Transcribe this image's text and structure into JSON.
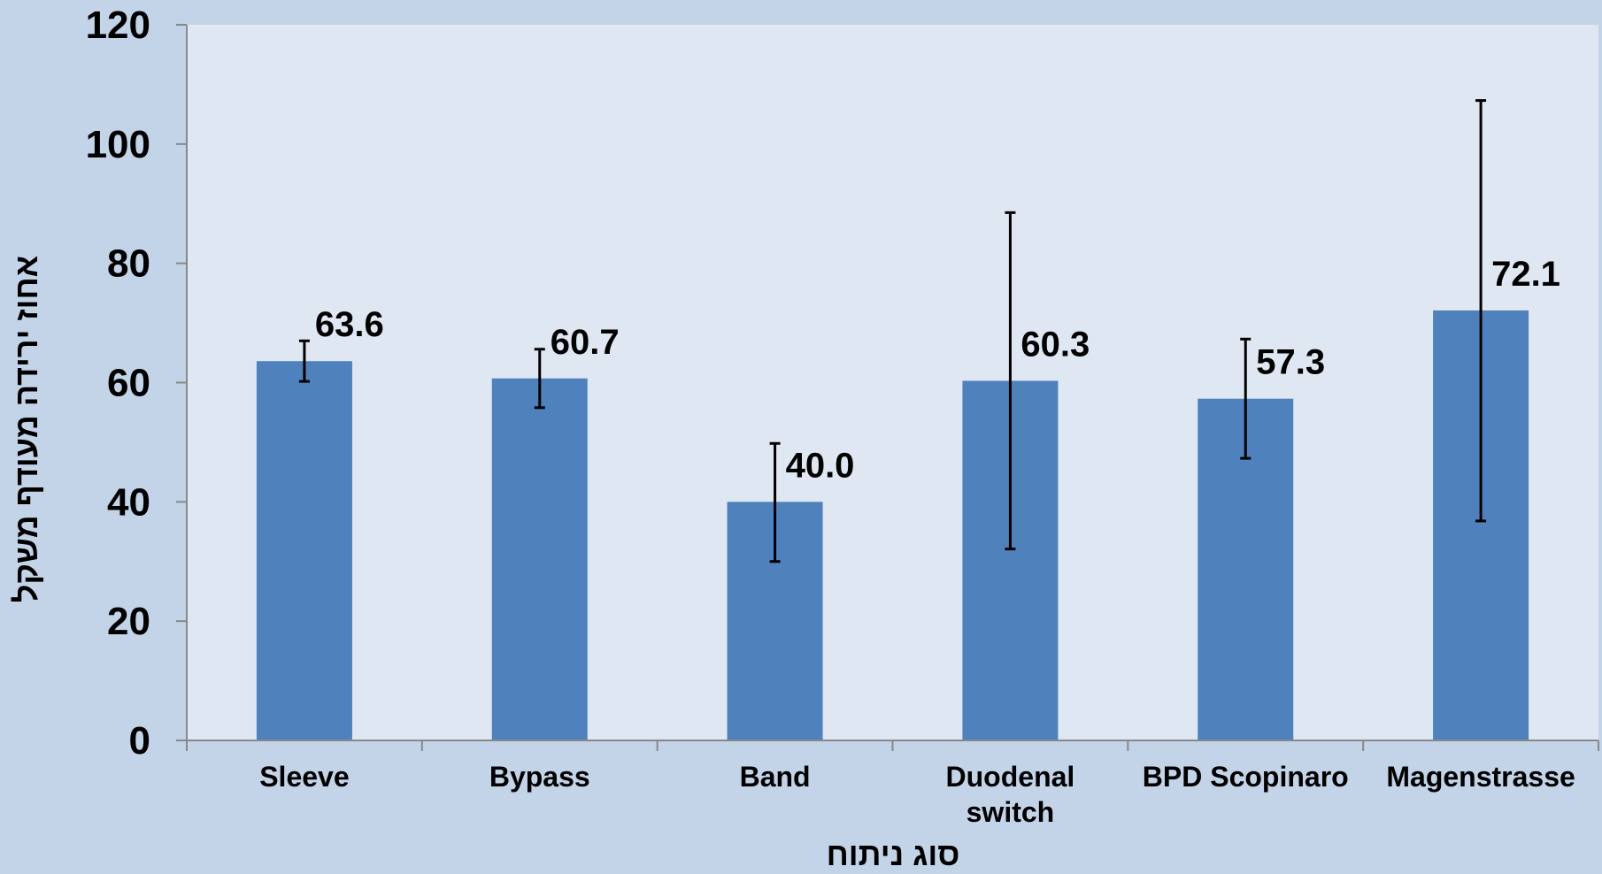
{
  "chart_data": {
    "type": "bar",
    "title": "",
    "xlabel": "סוג ניתוח",
    "ylabel": "אחוז ירידה מעודף משקל",
    "ylim": [
      0,
      120
    ],
    "yticks": [
      0,
      20,
      40,
      60,
      80,
      100,
      120
    ],
    "categories": [
      "Sleeve",
      "Bypass",
      "Band",
      "Duodenal switch",
      "BPD Scopinaro",
      "Magenstrasse"
    ],
    "values": [
      63.6,
      60.7,
      40.0,
      60.3,
      57.3,
      72.1
    ],
    "value_labels": [
      "63.6",
      "60.7",
      "40.0",
      "60.3",
      "57.3",
      "72.1"
    ],
    "error_bars": [
      {
        "low": 60.2,
        "high": 67.0
      },
      {
        "low": 55.8,
        "high": 65.6
      },
      {
        "low": 30.0,
        "high": 49.8
      },
      {
        "low": 32.1,
        "high": 88.5
      },
      {
        "low": 47.3,
        "high": 67.3
      },
      {
        "low": 36.8,
        "high": 107.3
      }
    ],
    "grid": false,
    "colors": {
      "background": "#c3d3e8",
      "plot_area": "#dfe7f2",
      "bar": "#4f81bd",
      "axis": "#888888",
      "error_bar": "#000000"
    }
  }
}
